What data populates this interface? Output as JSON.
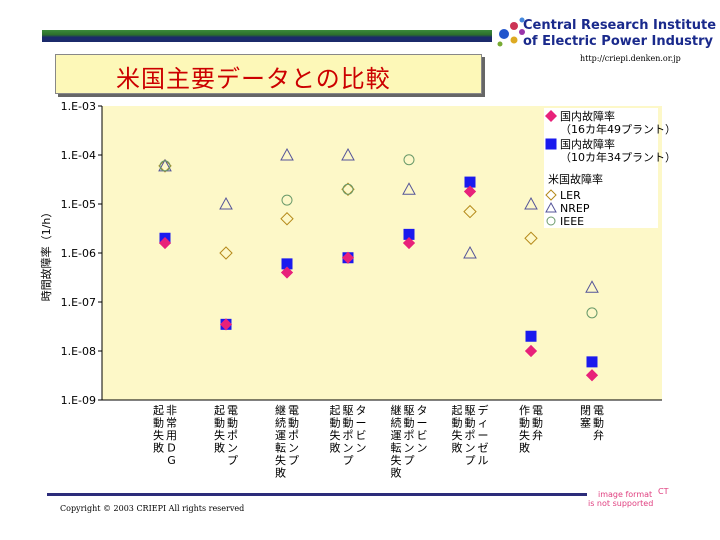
{
  "header": {
    "title": "米国主要データとの比較",
    "org_line1": "Central Research Institute",
    "org_line2": "of Electric Power Industry",
    "url": "http://criepi.denken.or.jp"
  },
  "footer": {
    "copyright": "Copyright © 2003 CRIEPI All rights reserved",
    "image_error_line1": "image format",
    "image_error_line2": "is not supported",
    "image_error_corner": "CT"
  },
  "colors": {
    "plot_bg": "#fdf8c8",
    "diamond": "#e8217a",
    "square": "#1a1aee",
    "ler": "#b58a1a",
    "nrep": "#555599",
    "ieee": "#6a9a6a",
    "title": "#cc0000",
    "org": "#1a2a8c"
  },
  "chart_data": {
    "type": "scatter",
    "ylabel": "時間故障率（1/h）",
    "yscale": "log",
    "ylim": [
      1e-09,
      0.001
    ],
    "ytick_labels": [
      "1.E-03",
      "1.E-04",
      "1.E-05",
      "1.E-06",
      "1.E-07",
      "1.E-08",
      "1.E-09"
    ],
    "categories": [
      "非常用DG起動失敗",
      "電動ポンプ起動失敗",
      "電動ポンプ継続運転失敗",
      "タービン駆動ポンプ起動失敗",
      "タービン駆動ポンプ継続運転失敗",
      "ディーゼル駆動ポンプ起動失敗",
      "電動弁作動失敗",
      "電動弁閉塞"
    ],
    "category_columns": [
      [
        "非常用DG",
        "起動失敗"
      ],
      [
        "電動ポンプ",
        "起動失敗"
      ],
      [
        "電動ポンプ",
        "継続運転失敗"
      ],
      [
        "タービン",
        "駆動ポンプ",
        "起動失敗"
      ],
      [
        "タービン",
        "駆動ポンプ",
        "継続運転失敗"
      ],
      [
        "ディーゼル",
        "駆動ポンプ",
        "起動失敗"
      ],
      [
        "電動弁",
        "作動失敗"
      ],
      [
        "電動弁",
        "閉塞"
      ]
    ],
    "legend_title_us": "米国故障率",
    "series": [
      {
        "name": "国内故障率（16カ年49プラント）",
        "marker": "diamond",
        "values": [
          1.6e-06,
          3.5e-08,
          4e-07,
          8e-07,
          1.6e-06,
          1.8e-05,
          1e-08,
          3.2e-09
        ]
      },
      {
        "name": "国内故障率（10カ年34プラント）",
        "marker": "square",
        "values": [
          2e-06,
          3.5e-08,
          6e-07,
          8e-07,
          2.4e-06,
          2.8e-05,
          2e-08,
          6e-09
        ]
      },
      {
        "name": "LER",
        "marker": "circle-open",
        "values": [
          6e-05,
          1e-06,
          5e-06,
          2e-05,
          null,
          7e-06,
          2e-06,
          null
        ]
      },
      {
        "name": "NREP",
        "marker": "triangle-open",
        "values": [
          6e-05,
          1e-05,
          0.0001,
          0.0001,
          2e-05,
          1e-06,
          1e-05,
          2e-07
        ]
      },
      {
        "name": "IEEE",
        "marker": "circle-open",
        "values": [
          6e-05,
          null,
          1.2e-05,
          2e-05,
          8e-05,
          null,
          null,
          6e-08
        ]
      }
    ],
    "legend_position": "right"
  }
}
